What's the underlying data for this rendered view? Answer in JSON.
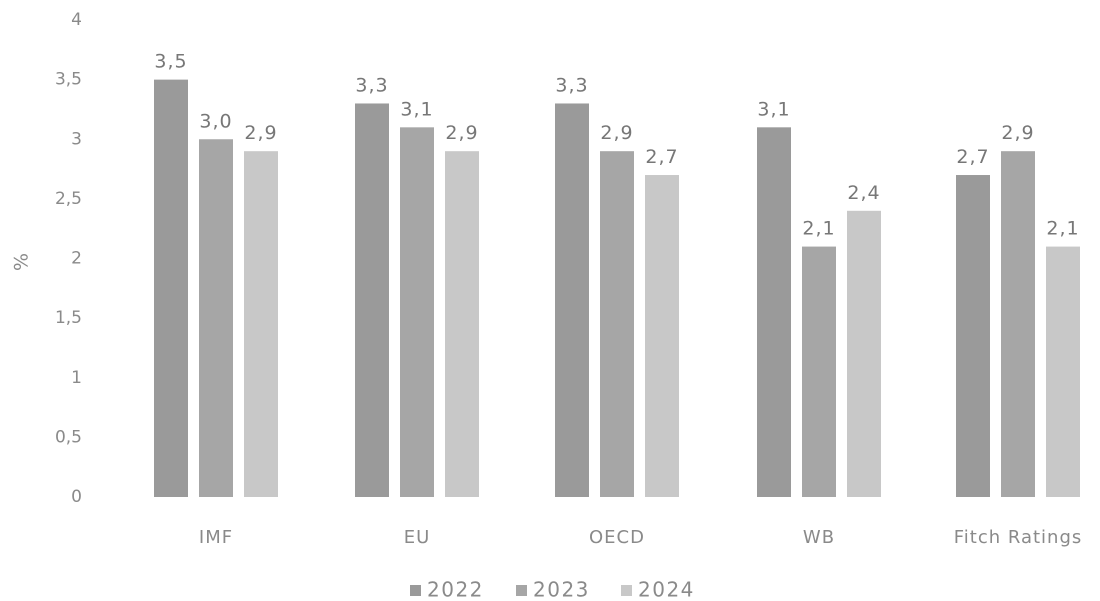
{
  "chart_data": {
    "type": "bar",
    "title": "",
    "xlabel": "",
    "ylabel": "%",
    "ylim": [
      0,
      4
    ],
    "yticks": [
      "0",
      "0,5",
      "1",
      "1,5",
      "2",
      "2,5",
      "3",
      "3,5",
      "4"
    ],
    "ytick_values": [
      0,
      0.5,
      1,
      1.5,
      2,
      2.5,
      3,
      3.5,
      4
    ],
    "grid": false,
    "legend_position": "bottom",
    "categories": [
      "IMF",
      "EU",
      "OECD",
      "WB",
      "Fitch Ratings"
    ],
    "series": [
      {
        "name": "2022",
        "color": "#9a9a9a",
        "values": [
          3.5,
          3.3,
          3.3,
          3.1,
          2.7
        ],
        "labels": [
          "3,5",
          "3,3",
          "3,3",
          "3,1",
          "2,7"
        ]
      },
      {
        "name": "2023",
        "color": "#a6a6a6",
        "values": [
          3.0,
          3.1,
          2.9,
          2.1,
          2.9
        ],
        "labels": [
          "3,0",
          "3,1",
          "2,9",
          "2,1",
          "2,9"
        ]
      },
      {
        "name": "2024",
        "color": "#c8c8c8",
        "values": [
          2.9,
          2.9,
          2.7,
          2.4,
          2.1
        ],
        "labels": [
          "2,9",
          "2,9",
          "2,7",
          "2,4",
          "2,1"
        ]
      }
    ]
  }
}
